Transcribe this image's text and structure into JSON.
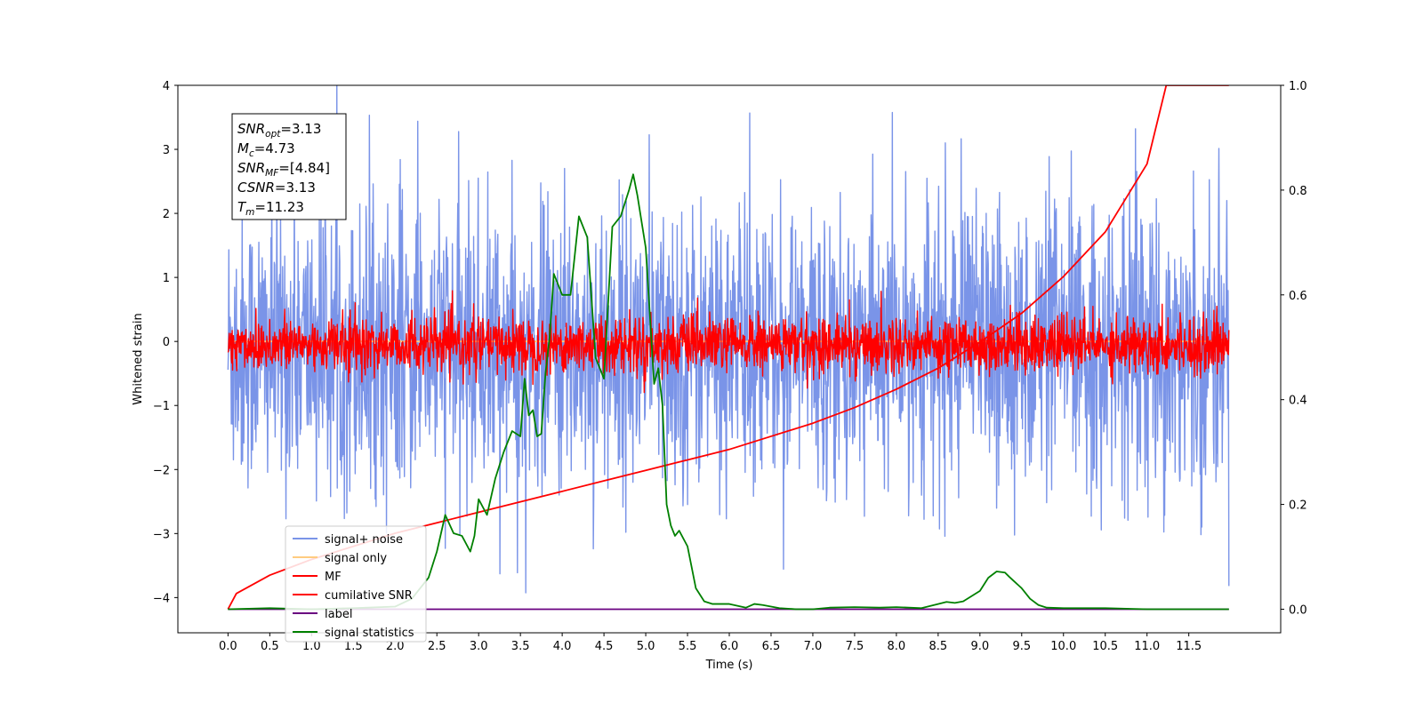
{
  "chart_data": {
    "type": "line",
    "xlabel": "Time (s)",
    "ylabel": "Whitened strain",
    "xlim": [
      -0.6,
      12.6
    ],
    "ylim": [
      -4.55,
      4.0
    ],
    "y2lim": [
      -0.045,
      1.0
    ],
    "xticks": [
      0.0,
      0.5,
      1.0,
      1.5,
      2.0,
      2.5,
      3.0,
      3.5,
      4.0,
      4.5,
      5.0,
      5.5,
      6.0,
      6.5,
      7.0,
      7.5,
      8.0,
      8.5,
      9.0,
      9.5,
      10.0,
      10.5,
      11.0,
      11.5
    ],
    "xtick_labels": [
      "0.0",
      "0.5",
      "1.0",
      "1.5",
      "2.0",
      "2.5",
      "3.0",
      "3.5",
      "4.0",
      "4.5",
      "5.0",
      "5.5",
      "6.0",
      "6.5",
      "7.0",
      "7.5",
      "8.0",
      "8.5",
      "9.0",
      "9.5",
      "10.0",
      "10.5",
      "11.0",
      "11.5"
    ],
    "yticks": [
      4,
      3,
      2,
      1,
      0,
      -1,
      -2,
      -3,
      -4
    ],
    "ytick_labels": [
      "4",
      "3",
      "2",
      "1",
      "0",
      "−1",
      "−2",
      "−3",
      "−4"
    ],
    "y2ticks": [
      1.0,
      0.8,
      0.6,
      0.4,
      0.2,
      0.0
    ],
    "y2tick_labels": [
      "1.0",
      "0.8",
      "0.6",
      "0.4",
      "0.2",
      "0.0"
    ],
    "grid": false,
    "legend_position": "lower-left",
    "annotation": {
      "lines": [
        {
          "var": "SNR",
          "sub": "opt",
          "rest": "=3.13"
        },
        {
          "var": "M",
          "sub": "c",
          "rest": "=4.73"
        },
        {
          "var": "SNR",
          "sub": "MF",
          "rest": "=[4.84]"
        },
        {
          "var": "CSNR",
          "sub": "",
          "rest": "=3.13"
        },
        {
          "var": "T",
          "sub": "m",
          "rest": "=11.23"
        }
      ]
    },
    "series": [
      {
        "name": "signal+ noise",
        "color": "#7a94e8",
        "axis": "left",
        "kind": "noise",
        "x_range": [
          0.0,
          11.98
        ],
        "std": 1.1,
        "mean": -0.1
      },
      {
        "name": "signal only",
        "color": "#ffcc80",
        "axis": "left",
        "kind": "flat",
        "x_range": [
          0.0,
          11.98
        ],
        "value": 0.0
      },
      {
        "name": "MF",
        "color": "#ff0000",
        "axis": "left",
        "kind": "noise",
        "x_range": [
          0.0,
          11.98
        ],
        "std": 0.22,
        "mean": -0.05
      },
      {
        "name": "cumilative SNR",
        "color": "#ff0000",
        "axis": "right",
        "x": [
          0.0,
          0.1,
          0.5,
          1.0,
          1.5,
          2.0,
          2.5,
          3.0,
          3.5,
          4.0,
          4.5,
          5.0,
          5.5,
          6.0,
          6.5,
          7.0,
          7.5,
          8.0,
          8.5,
          9.0,
          9.5,
          10.0,
          10.5,
          11.0,
          11.23,
          11.98
        ],
        "y": [
          0.0,
          0.03,
          0.065,
          0.095,
          0.12,
          0.145,
          0.165,
          0.185,
          0.205,
          0.225,
          0.245,
          0.265,
          0.285,
          0.305,
          0.33,
          0.355,
          0.385,
          0.42,
          0.46,
          0.51,
          0.565,
          0.635,
          0.72,
          0.85,
          1.0,
          1.0
        ]
      },
      {
        "name": "label",
        "color": "#6a0080",
        "axis": "right",
        "x": [
          0.0,
          11.98
        ],
        "y": [
          0.0,
          0.0
        ]
      },
      {
        "name": "signal statistics",
        "color": "#008000",
        "axis": "right",
        "x": [
          0.0,
          0.5,
          1.0,
          1.5,
          2.0,
          2.2,
          2.4,
          2.5,
          2.6,
          2.7,
          2.8,
          2.9,
          2.95,
          3.0,
          3.1,
          3.2,
          3.3,
          3.4,
          3.5,
          3.55,
          3.6,
          3.65,
          3.7,
          3.75,
          3.8,
          3.85,
          3.9,
          4.0,
          4.1,
          4.2,
          4.3,
          4.4,
          4.5,
          4.6,
          4.7,
          4.8,
          4.85,
          4.9,
          5.0,
          5.05,
          5.1,
          5.15,
          5.2,
          5.25,
          5.3,
          5.35,
          5.4,
          5.5,
          5.6,
          5.7,
          5.8,
          6.0,
          6.2,
          6.3,
          6.4,
          6.6,
          6.8,
          7.0,
          7.2,
          7.5,
          7.8,
          8.0,
          8.3,
          8.5,
          8.6,
          8.7,
          8.8,
          9.0,
          9.1,
          9.2,
          9.3,
          9.35,
          9.5,
          9.6,
          9.7,
          9.8,
          10.0,
          10.5,
          11.0,
          11.98
        ],
        "y": [
          0.0,
          0.002,
          0.0,
          0.002,
          0.005,
          0.02,
          0.06,
          0.11,
          0.18,
          0.145,
          0.14,
          0.11,
          0.14,
          0.21,
          0.18,
          0.25,
          0.3,
          0.34,
          0.33,
          0.44,
          0.37,
          0.38,
          0.33,
          0.335,
          0.45,
          0.52,
          0.64,
          0.6,
          0.6,
          0.75,
          0.71,
          0.48,
          0.44,
          0.73,
          0.75,
          0.8,
          0.83,
          0.79,
          0.69,
          0.56,
          0.43,
          0.46,
          0.39,
          0.2,
          0.16,
          0.14,
          0.15,
          0.12,
          0.04,
          0.015,
          0.01,
          0.01,
          0.003,
          0.01,
          0.008,
          0.002,
          0.0,
          0.0,
          0.003,
          0.004,
          0.003,
          0.004,
          0.002,
          0.01,
          0.014,
          0.012,
          0.015,
          0.035,
          0.06,
          0.072,
          0.07,
          0.062,
          0.04,
          0.02,
          0.008,
          0.003,
          0.002,
          0.002,
          0.0,
          0.0
        ]
      }
    ]
  }
}
